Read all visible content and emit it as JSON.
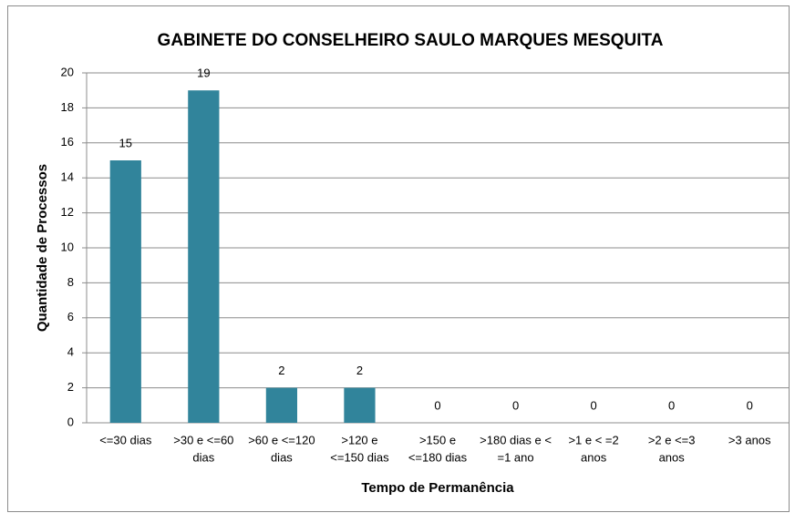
{
  "chart_data": {
    "type": "bar",
    "title": "GABINETE DO CONSELHEIRO SAULO MARQUES MESQUITA",
    "x_label": "Tempo de Permanência",
    "y_label": "Quantidade de Processos",
    "categories": [
      [
        "<=30 dias"
      ],
      [
        ">30 e <=60",
        "dias"
      ],
      [
        ">60 e <=120",
        "dias"
      ],
      [
        ">120 e",
        "<=150 dias"
      ],
      [
        ">150 e",
        "<=180 dias"
      ],
      [
        ">180 dias e <",
        "=1 ano"
      ],
      [
        ">1 e < =2",
        "anos"
      ],
      [
        ">2 e <=3",
        "anos"
      ],
      [
        ">3 anos"
      ]
    ],
    "values": [
      15,
      19,
      2,
      2,
      0,
      0,
      0,
      0,
      0
    ],
    "color": "#31849b",
    "ylim": [
      0,
      20
    ],
    "yticks": [
      0,
      2,
      4,
      6,
      8,
      10,
      12,
      14,
      16,
      18,
      20
    ],
    "grid": true
  }
}
